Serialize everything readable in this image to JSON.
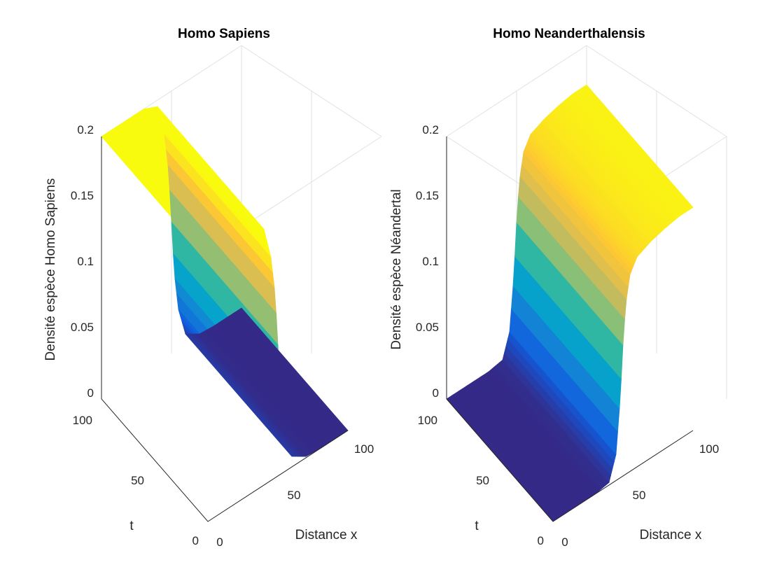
{
  "chart_data": [
    {
      "type": "surface",
      "title": "Homo Sapiens",
      "xlabel": "Distance x",
      "ylabel": "t",
      "zlabel": "Densité espèce Homo Sapiens",
      "xlim": [
        0,
        100
      ],
      "ylim": [
        0,
        100
      ],
      "zlim": [
        0,
        0.2
      ],
      "xticks": [
        "0",
        "50",
        "100"
      ],
      "yticks": [
        "0",
        "50",
        "100"
      ],
      "zticks": [
        "0",
        "0.05",
        "0.1",
        "0.15",
        "0.2"
      ],
      "grid": true,
      "colormap": "parula",
      "profile": {
        "description": "density vs x, constant in t",
        "x": [
          0,
          10,
          20,
          30,
          40,
          45,
          48,
          50,
          52,
          55,
          60,
          70,
          80,
          90,
          100
        ],
        "z": [
          0.2,
          0.2,
          0.2,
          0.2,
          0.195,
          0.17,
          0.14,
          0.1,
          0.06,
          0.03,
          0.008,
          0.001,
          0.0,
          0.0,
          0.0
        ]
      }
    },
    {
      "type": "surface",
      "title": "Homo Neanderthalensis",
      "xlabel": "Distance x",
      "ylabel": "t",
      "zlabel": "Densité espèce Néandertal",
      "xlim": [
        0,
        100
      ],
      "ylim": [
        0,
        100
      ],
      "zlim": [
        0,
        0.2
      ],
      "xticks": [
        "0",
        "50",
        "100"
      ],
      "yticks": [
        "0",
        "50",
        "100"
      ],
      "zticks": [
        "0",
        "0.05",
        "0.1",
        "0.15",
        "0.2"
      ],
      "grid": true,
      "colormap": "parula",
      "profile": {
        "description": "density vs x, constant in t",
        "x": [
          0,
          10,
          20,
          30,
          40,
          45,
          48,
          50,
          52,
          55,
          60,
          70,
          80,
          90,
          100
        ],
        "z": [
          0.0,
          0.0,
          0.0,
          0.0,
          0.002,
          0.02,
          0.06,
          0.1,
          0.13,
          0.15,
          0.16,
          0.165,
          0.168,
          0.17,
          0.17
        ]
      }
    }
  ],
  "colors": {
    "parula": [
      "#352a87",
      "#0f5cdd",
      "#1481d6",
      "#06a4ca",
      "#2eb7a4",
      "#87bf77",
      "#d1bb59",
      "#fec832",
      "#f9fb0e"
    ]
  }
}
